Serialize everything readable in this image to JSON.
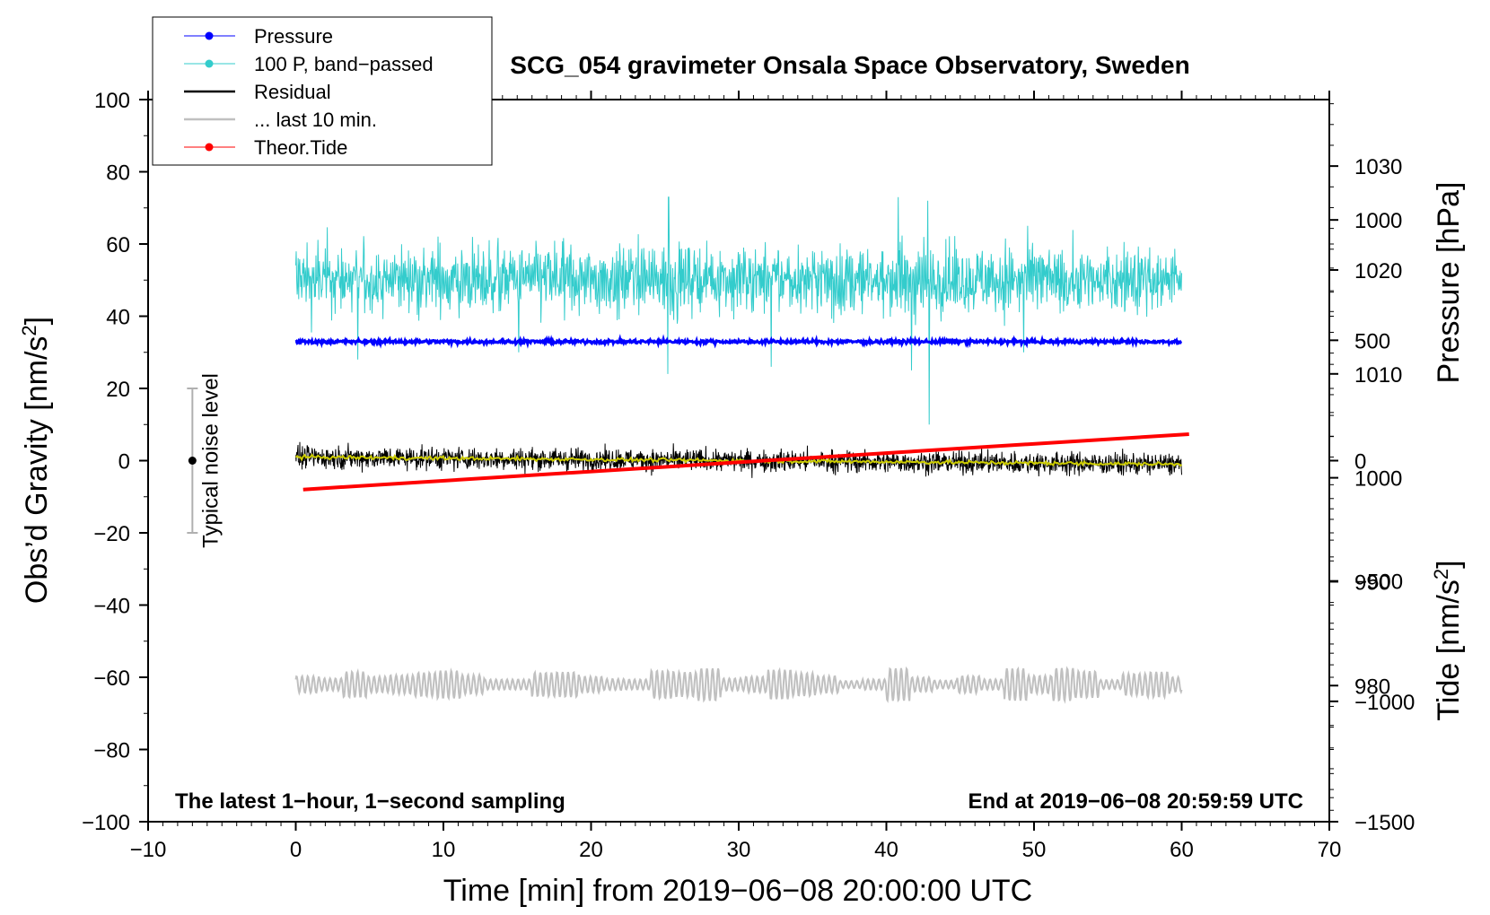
{
  "chart_data": {
    "type": "line",
    "title": "SCG_054 gravimeter Onsala Space Observatory, Sweden",
    "xlabel": "Time [min] from 2019−06−08 20:00:00 UTC",
    "ylabel_left_prefix": "Obs’d Gravity [nm/s",
    "ylabel_left_sup": "2",
    "ylabel_left_suffix": "]",
    "ylabel_pressure": "Pressure [hPa]",
    "ylabel_tide_prefix": "Tide [nm/s",
    "ylabel_tide_sup": "2",
    "ylabel_tide_suffix": "]",
    "xlim": [
      -10,
      70
    ],
    "ylim": [
      -100,
      100
    ],
    "pressure_lim": [
      966.9,
      1036.4
    ],
    "tide_lim": [
      -1500,
      1500
    ],
    "x_ticks": [
      "−10",
      "0",
      "10",
      "20",
      "30",
      "40",
      "50",
      "60",
      "70"
    ],
    "y_ticks": [
      "100",
      "80",
      "60",
      "40",
      "20",
      "0",
      "−20",
      "−40",
      "−60",
      "−80",
      "−100"
    ],
    "pressure_ticks": [
      "1030",
      "1020",
      "1010",
      "1000",
      "990",
      "980"
    ],
    "tide_ticks": [
      "1000",
      "500",
      "0",
      "−500",
      "−1000",
      "−1500"
    ],
    "noise_bar": {
      "x": -7,
      "center": 0,
      "half_range": 20,
      "label": "Typical noise level"
    },
    "note_left": "The latest 1−hour, 1−second sampling",
    "note_right": "End at 2019−06−08 20:59:59 UTC",
    "legend": [
      {
        "label": "Pressure",
        "color": "#0000ff",
        "marker": true
      },
      {
        "label": "100 P, band−passed",
        "color": "#33cccc",
        "marker": true
      },
      {
        "label": "Residual",
        "color": "#000000",
        "marker": false
      },
      {
        "label": "... last 10 min.",
        "color": "#c0c0c0",
        "marker": false
      },
      {
        "label": "Theor.Tide",
        "color": "#ff0000",
        "marker": true
      }
    ],
    "series": [
      {
        "name": "Pressure",
        "color": "#0000ff",
        "axis": "pressure",
        "x_range": [
          0,
          60
        ],
        "level_hPa": 1013.1,
        "noise": 0.3
      },
      {
        "name": "100 P, band-passed",
        "color": "#33cccc",
        "axis": "gravity",
        "x_range": [
          0,
          60
        ],
        "center": 50,
        "amplitude": 8,
        "spikes": [
          [
            25.2,
            24
          ],
          [
            25.25,
            73
          ],
          [
            42.9,
            10
          ],
          [
            40.8,
            73
          ],
          [
            42.8,
            72
          ],
          [
            4.2,
            28
          ],
          [
            15.1,
            30
          ],
          [
            32.2,
            26
          ],
          [
            41.7,
            25
          ],
          [
            49.3,
            30
          ]
        ]
      },
      {
        "name": "Residual",
        "color": "#000000",
        "axis": "gravity",
        "x_range": [
          0,
          60
        ],
        "start": 1,
        "end": -1,
        "amplitude": 3
      },
      {
        "name": "Residual smoothed",
        "color": "#cccc00",
        "axis": "gravity",
        "x_range": [
          0,
          60
        ],
        "start": 1,
        "end": -1
      },
      {
        "name": "... last 10 min.",
        "color": "#c0c0c0",
        "axis": "gravity",
        "x_range": [
          0,
          60
        ],
        "center": -62,
        "amplitude": 3
      },
      {
        "name": "Theor.Tide",
        "color": "#ff0000",
        "axis": "tide",
        "x": [
          0.5,
          60.5
        ],
        "values": [
          -120,
          110
        ]
      }
    ]
  }
}
